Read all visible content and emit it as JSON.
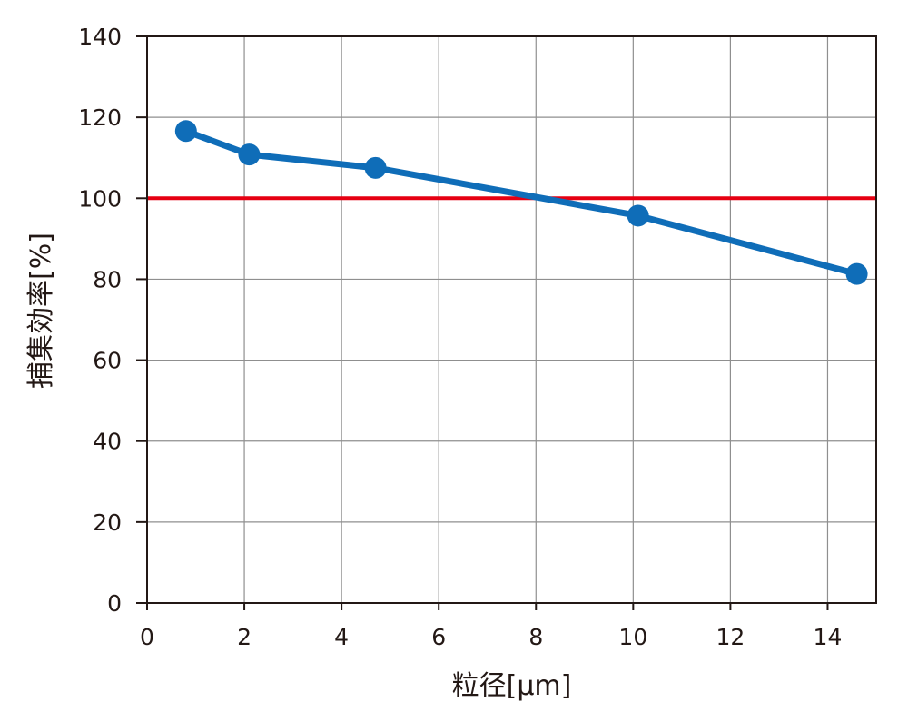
{
  "chart_data": {
    "type": "line",
    "xlabel": "粒径[μm]",
    "ylabel": "捕集効率[%]",
    "xlim": [
      0,
      15
    ],
    "ylim": [
      0,
      140
    ],
    "x_ticks": [
      0,
      2,
      4,
      6,
      8,
      10,
      12,
      14
    ],
    "y_ticks": [
      0,
      20,
      40,
      60,
      80,
      100,
      120,
      140
    ],
    "grid": true,
    "series": [
      {
        "color": "#0f6db8",
        "marker": "circle",
        "points": [
          {
            "x": 0.8,
            "y": 116.6
          },
          {
            "x": 2.1,
            "y": 110.8
          },
          {
            "x": 4.7,
            "y": 107.5
          },
          {
            "x": 10.1,
            "y": 95.7
          },
          {
            "x": 14.6,
            "y": 81.3
          }
        ]
      }
    ],
    "reference_line": {
      "y": 100,
      "color": "#e60012"
    }
  }
}
